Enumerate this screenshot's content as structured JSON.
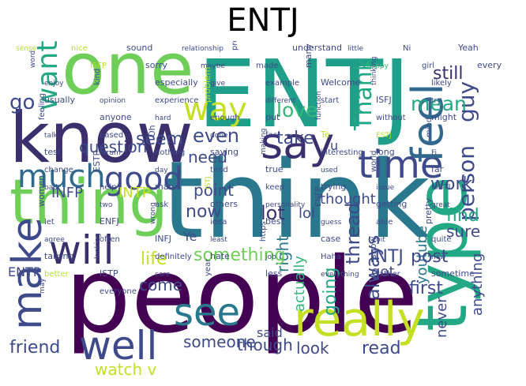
{
  "title": "ENTJ",
  "palette": [
    "#440154",
    "#482878",
    "#3e4a89",
    "#31688e",
    "#26828e",
    "#1f9e89",
    "#35b779",
    "#6ece58",
    "#b5de2b",
    "#fde725"
  ],
  "words": [
    {
      "text": "people",
      "color": "#440154"
    },
    {
      "text": "think",
      "color": "#2a788e"
    },
    {
      "text": "ENTJ",
      "color": "#1f9e89"
    },
    {
      "text": "one",
      "color": "#6ece58"
    },
    {
      "text": "know",
      "color": "#3b2f6e"
    },
    {
      "text": "thing",
      "color": "#6ece58"
    },
    {
      "text": "type",
      "color": "#22a884"
    },
    {
      "text": "really",
      "color": "#c4df24"
    },
    {
      "text": "say",
      "color": "#3b2f6e"
    },
    {
      "text": "time",
      "color": "#3e4a89"
    },
    {
      "text": "feel",
      "color": "#31688e"
    },
    {
      "text": "make",
      "color": "#3e4a89"
    },
    {
      "text": "see",
      "color": "#2a788e"
    },
    {
      "text": "well",
      "color": "#3e4a89"
    },
    {
      "text": "way",
      "color": "#c4df24"
    },
    {
      "text": "want",
      "color": "#22a884"
    },
    {
      "text": "much",
      "color": "#31688e"
    },
    {
      "text": "good",
      "color": "#3e4a89"
    },
    {
      "text": "will",
      "color": "#3b2f6e"
    },
    {
      "text": "go",
      "color": "#3e4a89"
    },
    {
      "text": "Thank",
      "color": "#22a884"
    },
    {
      "text": "person",
      "color": "#3e4a89"
    },
    {
      "text": "guy",
      "color": "#3e4a89"
    },
    {
      "text": "mean",
      "color": "#22a884"
    },
    {
      "text": "love",
      "color": "#35b779"
    },
    {
      "text": "take",
      "color": "#3e4a89"
    },
    {
      "text": "still",
      "color": "#3b2f6e"
    },
    {
      "text": "question",
      "color": "#3e4a89"
    },
    {
      "text": "seem",
      "color": "#3e4a89"
    },
    {
      "text": "even",
      "color": "#3e4a89"
    },
    {
      "text": "need",
      "color": "#3e4a89"
    },
    {
      "text": "work",
      "color": "#3e4a89"
    },
    {
      "text": "find",
      "color": "#22a884"
    },
    {
      "text": "thought",
      "color": "#3e4a89"
    },
    {
      "text": "lot",
      "color": "#3b2f6e"
    },
    {
      "text": "lol",
      "color": "#3e4a89"
    },
    {
      "text": "point",
      "color": "#3e4a89"
    },
    {
      "text": "sure",
      "color": "#3e4a89"
    },
    {
      "text": "thread",
      "color": "#3e4a89"
    },
    {
      "text": "right",
      "color": "#2a788e"
    },
    {
      "text": "actually",
      "color": "#35b779"
    },
    {
      "text": "always",
      "color": "#3e4a89"
    },
    {
      "text": "going",
      "color": "#22a884"
    },
    {
      "text": "got",
      "color": "#3e4a89"
    },
    {
      "text": "youtube",
      "color": "#2a788e"
    },
    {
      "text": "INFP",
      "color": "#3e4a89"
    },
    {
      "text": "INTP",
      "color": "#c4df24"
    },
    {
      "text": "now",
      "color": "#3e4a89"
    },
    {
      "text": "Ye",
      "color": "#3e4a89"
    },
    {
      "text": "something",
      "color": "#6ece58"
    },
    {
      "text": "life",
      "color": "#c4df24"
    },
    {
      "text": "INTJ",
      "color": "#3e4a89"
    },
    {
      "text": "post",
      "color": "#3e4a89"
    },
    {
      "text": "ENTP",
      "color": "#3e4a89"
    },
    {
      "text": "first",
      "color": "#3e4a89"
    },
    {
      "text": "come",
      "color": "#3e4a89"
    },
    {
      "text": "anything",
      "color": "#3e4a89"
    },
    {
      "text": "never",
      "color": "#3e4a89"
    },
    {
      "text": "someone",
      "color": "#3e4a89"
    },
    {
      "text": "said",
      "color": "#3e4a89"
    },
    {
      "text": "friend",
      "color": "#3e4a89"
    },
    {
      "text": "watch v",
      "color": "#c4df24"
    },
    {
      "text": "though",
      "color": "#3e4a89"
    },
    {
      "text": "look",
      "color": "#3e4a89"
    },
    {
      "text": "read",
      "color": "#3e4a89"
    },
    {
      "text": "u",
      "color": "#3e4a89"
    },
    {
      "text": "sense",
      "color": "#b5de2b"
    },
    {
      "text": "nice",
      "color": "#b5de2b"
    },
    {
      "text": "sound",
      "color": "#3e4a89"
    },
    {
      "text": "relationship",
      "color": "#3e4a89"
    },
    {
      "text": "probably",
      "color": "#3e4a89"
    },
    {
      "text": "understand",
      "color": "#3e4a89"
    },
    {
      "text": "little",
      "color": "#3e4a89"
    },
    {
      "text": "Ni",
      "color": "#3e4a89"
    },
    {
      "text": "Yeah",
      "color": "#3e4a89"
    },
    {
      "text": "word",
      "color": "#3e4a89"
    },
    {
      "text": "ISFP",
      "color": "#b5de2b"
    },
    {
      "text": "sorry",
      "color": "#3e4a89"
    },
    {
      "text": "maybe",
      "color": "#3e4a89"
    },
    {
      "text": "made",
      "color": "#3e4a89"
    },
    {
      "text": "many",
      "color": "#3e4a89"
    },
    {
      "text": "happy",
      "color": "#35b779"
    },
    {
      "text": "girl",
      "color": "#3e4a89"
    },
    {
      "text": "every",
      "color": "#3e4a89"
    },
    {
      "text": "enjoy",
      "color": "#3e4a89"
    },
    {
      "text": "kind",
      "color": "#3e4a89"
    },
    {
      "text": "especially",
      "color": "#3e4a89"
    },
    {
      "text": "give",
      "color": "#3e4a89"
    },
    {
      "text": "example",
      "color": "#3e4a89"
    },
    {
      "text": "Welcome",
      "color": "#3e4a89"
    },
    {
      "text": "thinking",
      "color": "#3e4a89"
    },
    {
      "text": "likely",
      "color": "#3e4a89"
    },
    {
      "text": "usually",
      "color": "#3e4a89"
    },
    {
      "text": "opinion",
      "color": "#3e4a89"
    },
    {
      "text": "experience",
      "color": "#3e4a89"
    },
    {
      "text": "problem",
      "color": "#b5de2b"
    },
    {
      "text": "different",
      "color": "#3e4a89"
    },
    {
      "text": "start",
      "color": "#3e4a89"
    },
    {
      "text": "ISFJ",
      "color": "#3e4a89"
    },
    {
      "text": "try",
      "color": "#3e4a89"
    },
    {
      "text": "feeling",
      "color": "#3e4a89"
    },
    {
      "text": "anyone",
      "color": "#3e4a89"
    },
    {
      "text": "hard",
      "color": "#3e4a89"
    },
    {
      "text": "enough",
      "color": "#3e4a89"
    },
    {
      "text": "put",
      "color": "#3e4a89"
    },
    {
      "text": "function",
      "color": "#3e4a89"
    },
    {
      "text": "without",
      "color": "#3e4a89"
    },
    {
      "text": "might",
      "color": "#3e4a89"
    },
    {
      "text": "talk",
      "color": "#3e4a89"
    },
    {
      "text": "based",
      "color": "#3e4a89"
    },
    {
      "text": "Oh",
      "color": "#3e4a89"
    },
    {
      "text": "done",
      "color": "#3e4a89"
    },
    {
      "text": "fact",
      "color": "#3e4a89"
    },
    {
      "text": "Te",
      "color": "#b5de2b"
    },
    {
      "text": "ESTJ",
      "color": "#b5de2b"
    },
    {
      "text": "mind",
      "color": "#3e4a89"
    },
    {
      "text": "test",
      "color": "#3e4a89"
    },
    {
      "text": "forum",
      "color": "#3e4a89"
    },
    {
      "text": "nothing",
      "color": "#3e4a89"
    },
    {
      "text": "saying",
      "color": "#3e4a89"
    },
    {
      "text": "making",
      "color": "#3e4a89"
    },
    {
      "text": "interesting",
      "color": "#3e4a89"
    },
    {
      "text": "long",
      "color": "#3e4a89"
    },
    {
      "text": "Fi",
      "color": "#3e4a89"
    },
    {
      "text": "change",
      "color": "#3e4a89"
    },
    {
      "text": "ESTP",
      "color": "#3e4a89"
    },
    {
      "text": "day",
      "color": "#3e4a89"
    },
    {
      "text": "tend",
      "color": "#3e4a89"
    },
    {
      "text": "true",
      "color": "#3e4a89"
    },
    {
      "text": "used",
      "color": "#3e4a89"
    },
    {
      "text": "world",
      "color": "#3e4a89"
    },
    {
      "text": "far",
      "color": "#3e4a89"
    },
    {
      "text": "bad",
      "color": "#3e4a89"
    },
    {
      "text": "help",
      "color": "#3e4a89"
    },
    {
      "text": "man",
      "color": "#3e4a89"
    },
    {
      "text": "ISTJ",
      "color": "#b5de2b"
    },
    {
      "text": "keep",
      "color": "#3e4a89"
    },
    {
      "text": "trying",
      "color": "#3e4a89"
    },
    {
      "text": "issue",
      "color": "#3e4a89"
    },
    {
      "text": "MBTI",
      "color": "#3e4a89"
    },
    {
      "text": "women",
      "color": "#3e4a89"
    },
    {
      "text": "two",
      "color": "#3e4a89"
    },
    {
      "text": "ask",
      "color": "#3e4a89"
    },
    {
      "text": "others",
      "color": "#3e4a89"
    },
    {
      "text": "personality",
      "color": "#3e4a89"
    },
    {
      "text": "ENFP",
      "color": "#3e4a89"
    },
    {
      "text": "getting",
      "color": "#3e4a89"
    },
    {
      "text": "great",
      "color": "#3e4a89"
    },
    {
      "text": "let",
      "color": "#3e4a89"
    },
    {
      "text": "ENFJ",
      "color": "#3e4a89"
    },
    {
      "text": "wrong",
      "color": "#3e4a89"
    },
    {
      "text": "idea",
      "color": "#3e4a89"
    },
    {
      "text": "best",
      "color": "#3e4a89"
    },
    {
      "text": "guess",
      "color": "#3e4a89"
    },
    {
      "text": "able",
      "color": "#3e4a89"
    },
    {
      "text": "pretty",
      "color": "#3e4a89"
    },
    {
      "text": "agree",
      "color": "#3e4a89"
    },
    {
      "text": "often",
      "color": "#3e4a89"
    },
    {
      "text": "INFJ",
      "color": "#3e4a89"
    },
    {
      "text": "least",
      "color": "#3e4a89"
    },
    {
      "text": "https",
      "color": "#3e4a89"
    },
    {
      "text": "case",
      "color": "#3e4a89"
    },
    {
      "text": "bit",
      "color": "#3e4a89"
    },
    {
      "text": "quite",
      "color": "#3e4a89"
    },
    {
      "text": "talking",
      "color": "#3e4a89"
    },
    {
      "text": "looking",
      "color": "#3e4a89"
    },
    {
      "text": "definitely",
      "color": "#3e4a89"
    },
    {
      "text": "hate",
      "color": "#3e4a89"
    },
    {
      "text": "job",
      "color": "#3e4a89"
    },
    {
      "text": "Haha",
      "color": "#3e4a89"
    },
    {
      "text": "show",
      "color": "#3e4a89"
    },
    {
      "text": "new",
      "color": "#3e4a89"
    },
    {
      "text": "better",
      "color": "#b5de2b"
    },
    {
      "text": "ISTP",
      "color": "#3e4a89"
    },
    {
      "text": "care",
      "color": "#3e4a89"
    },
    {
      "text": "year",
      "color": "#3e4a89"
    },
    {
      "text": "less",
      "color": "#3e4a89"
    },
    {
      "text": "everything",
      "color": "#3e4a89"
    },
    {
      "text": "rather",
      "color": "#3e4a89"
    },
    {
      "text": "sometime",
      "color": "#3e4a89"
    },
    {
      "text": "may",
      "color": "#3e4a89"
    },
    {
      "text": "everyone",
      "color": "#3e4a89"
    }
  ]
}
